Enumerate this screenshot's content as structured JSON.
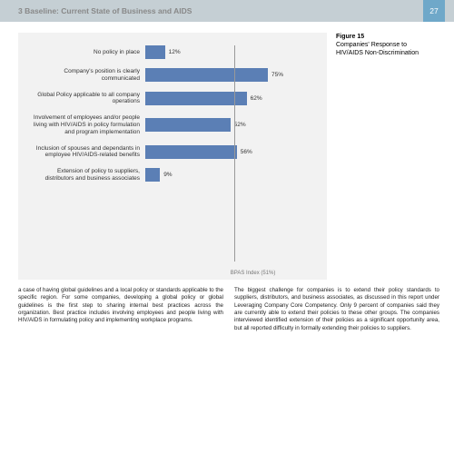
{
  "header": {
    "title": "3 Baseline: Current State of Business and AIDS",
    "page": "27"
  },
  "figure": {
    "num": "Figure 15",
    "caption": "Companies' Response to HIV/AIDS Non-Discrimination"
  },
  "chart": {
    "type": "bar",
    "max": 100,
    "bar_color": "#5b7fb5",
    "bg_color": "#f2f2f2",
    "index": {
      "label": "BPAS Index (51%)",
      "value": 51
    },
    "rows": [
      {
        "label": "No policy in place",
        "value": 12,
        "text": "12%"
      },
      {
        "label": "Company's position is clearly communicated",
        "value": 75,
        "text": "75%"
      },
      {
        "label": "Global Policy applicable to all company operations",
        "value": 62,
        "text": "62%"
      },
      {
        "label": "Involvement of employees and/or people living with HIV/AIDS in policy formulation and program implementation",
        "value": 52,
        "text": "52%"
      },
      {
        "label": "Inclusion of spouses and dependants in employee HIV/AIDS-related benefits",
        "value": 56,
        "text": "56%"
      },
      {
        "label": "Extension of policy to suppliers, distributors and business associates",
        "value": 9,
        "text": "9%"
      }
    ]
  },
  "body": {
    "col1": "a case of having global guidelines and a local policy or standards applicable to the specific region. For some companies, developing a global policy or global guidelines is the first step to sharing internal best practices across the organization. Best practice includes involving employees and people living with HIV/AIDS in formulating policy and implementing workplace programs.",
    "col2": "The biggest challenge for companies is to extend their policy standards to suppliers, distributors, and business associates, as discussed in this report under Leveraging Company Core Competency. Only 9 percent of companies said they are currently able to extend their policies to these other groups. The companies interviewed identified extension of their policies as a significant opportunity area, but all reported difficulty in formally extending their policies to suppliers."
  }
}
